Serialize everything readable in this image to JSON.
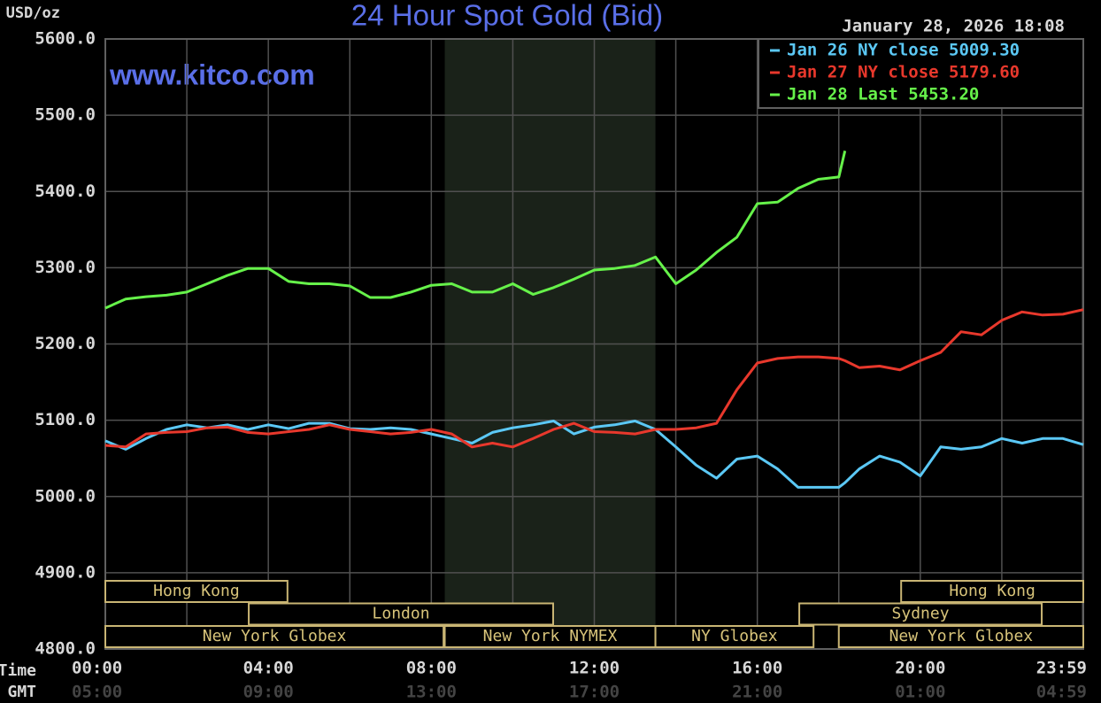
{
  "chart_data": {
    "type": "line",
    "title": "24 Hour Spot Gold (Bid)",
    "y_label": "USD/oz",
    "timestamp": "January 28, 2026 18:08",
    "watermark": "www.kitco.com",
    "row_labels": [
      "NY Time",
      "GMT"
    ],
    "x": [
      0,
      0.5,
      1,
      1.5,
      2,
      2.5,
      3,
      3.5,
      4,
      4.5,
      5,
      5.5,
      6,
      6.5,
      7,
      7.5,
      8,
      8.5,
      9,
      9.5,
      10,
      10.5,
      11,
      11.5,
      12,
      12.5,
      13,
      13.5,
      14,
      14.5,
      15,
      15.5,
      16,
      16.5,
      17,
      17.5,
      18,
      18.15,
      18.5,
      19,
      19.5,
      20,
      20.5,
      21,
      21.5,
      22,
      22.5,
      23,
      23.5,
      24
    ],
    "series": [
      {
        "name": "Jan 26 NY close 5009.30",
        "color": "#5bc8f5",
        "values": [
          5073,
          5062,
          5076,
          5088,
          5094,
          5090,
          5094,
          5088,
          5094,
          5089,
          5096,
          5096,
          5089,
          5088,
          5090,
          5088,
          5082,
          5076,
          5070,
          5084,
          5090,
          5094,
          5099,
          5082,
          5091,
          5094,
          5099,
          5088,
          5065,
          5041,
          5024,
          5049,
          5053,
          5036,
          5012,
          5012,
          5012,
          5018,
          5036,
          5053,
          5045,
          5027,
          5065,
          5062,
          5065,
          5076,
          5070,
          5076,
          5076,
          5068
        ]
      },
      {
        "name": "Jan 27 NY close 5179.60",
        "color": "#e8382c",
        "values": [
          5067,
          5065,
          5082,
          5084,
          5085,
          5090,
          5091,
          5084,
          5082,
          5085,
          5088,
          5094,
          5088,
          5085,
          5082,
          5084,
          5088,
          5082,
          5065,
          5070,
          5065,
          5076,
          5088,
          5096,
          5085,
          5084,
          5082,
          5088,
          5088,
          5090,
          5096,
          5140,
          5175,
          5181,
          5183,
          5183,
          5181,
          5178,
          5169,
          5171,
          5166,
          5178,
          5189,
          5216,
          5212,
          5231,
          5242,
          5238,
          5239,
          5245
        ]
      },
      {
        "name": "Jan 28 Last 5453.20",
        "color": "#66f24a",
        "values": [
          5247,
          5259,
          5262,
          5264,
          5268,
          5279,
          5290,
          5299,
          5299,
          5282,
          5279,
          5279,
          5276,
          5261,
          5261,
          5268,
          5277,
          5279,
          5268,
          5268,
          5279,
          5265,
          5274,
          5285,
          5297,
          5299,
          5303,
          5314,
          5279,
          5297,
          5320,
          5340,
          5384,
          5386,
          5404,
          5416,
          5419,
          5453.2,
          null,
          null,
          null,
          null,
          null,
          null,
          null,
          null,
          null,
          null,
          null,
          null
        ]
      }
    ],
    "xlim": [
      0,
      24
    ],
    "xticks": [
      {
        "value": 0,
        "label": "00:00"
      },
      {
        "value": 4,
        "label": "04:00"
      },
      {
        "value": 8,
        "label": "08:00"
      },
      {
        "value": 12,
        "label": "12:00"
      },
      {
        "value": 16,
        "label": "16:00"
      },
      {
        "value": 20,
        "label": "20:00"
      },
      {
        "value": 23.983,
        "label": "23:59"
      }
    ],
    "gmt_labels": [
      "05:00",
      "09:00",
      "13:00",
      "17:00",
      "21:00",
      "01:00",
      "04:59"
    ],
    "xgrid": [
      2,
      6,
      10,
      14,
      18,
      22
    ],
    "ylim": [
      4800,
      5600
    ],
    "yticks": [
      {
        "value": 4800,
        "label": "4800.0"
      },
      {
        "value": 4900,
        "label": "4900.0"
      },
      {
        "value": 5000,
        "label": "5000.0"
      },
      {
        "value": 5100,
        "label": "5100.0"
      },
      {
        "value": 5200,
        "label": "5200.0"
      },
      {
        "value": 5300,
        "label": "5300.0"
      },
      {
        "value": 5400,
        "label": "5400.0"
      },
      {
        "value": 5500,
        "label": "5500.0"
      },
      {
        "value": 5600,
        "label": "5600.0"
      }
    ],
    "grid": true,
    "shade": [
      8.33,
      13.5
    ],
    "sessions": [
      [
        {
          "name": "Hong Kong",
          "start": 0,
          "end": 4.47
        },
        {
          "name": "Hong Kong",
          "start": 19.53,
          "end": 24
        }
      ],
      [
        {
          "name": "London",
          "start": 3.52,
          "end": 10.99
        },
        {
          "name": "Sydney",
          "start": 17.03,
          "end": 22.98
        }
      ],
      [
        {
          "name": "New York Globex",
          "start": 0,
          "end": 8.3
        },
        {
          "name": "New York NYMEX",
          "start": 8.33,
          "end": 13.5
        },
        {
          "name": "NY Globex",
          "start": 13.5,
          "end": 17.38
        },
        {
          "name": "New York Globex",
          "start": 18,
          "end": 24
        }
      ]
    ]
  }
}
